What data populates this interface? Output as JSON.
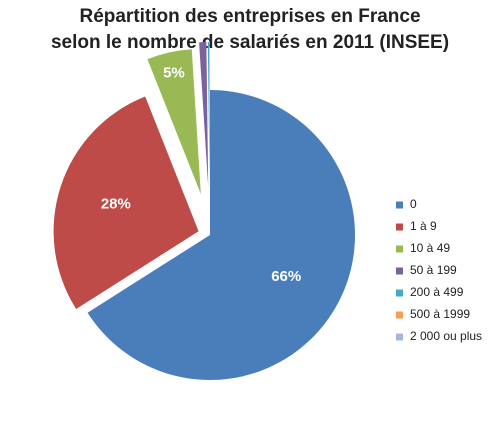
{
  "chart_data": {
    "type": "pie",
    "title": [
      "Répartition des entreprises en France",
      "selon le nombre de salariés en 2011 (INSEE)"
    ],
    "categories": [
      "0",
      "1 à 9",
      "10 à 49",
      "50 à 199",
      "200 à 499",
      "500 à 1999",
      "2 000 ou plus"
    ],
    "values": [
      66,
      28,
      5,
      0.8,
      0.15,
      0.04,
      0.01
    ],
    "value_labels": [
      "66%",
      "28%",
      "5%",
      null,
      null,
      null,
      null
    ],
    "colors": [
      "#4a7ebb",
      "#be4b48",
      "#98b954",
      "#7d60a0",
      "#46aac5",
      "#f59d56",
      "#a5b8d9"
    ],
    "legend": "right"
  }
}
